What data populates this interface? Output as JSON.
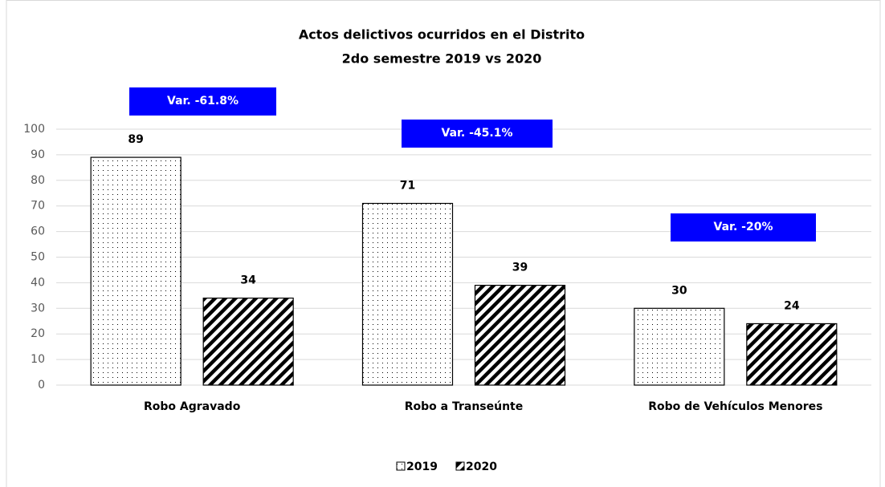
{
  "chart_data": {
    "type": "bar",
    "title": [
      "Actos delictivos ocurridos en el Distrito",
      "2do semestre 2019 vs 2020"
    ],
    "categories": [
      "Robo Agravado",
      "Robo a Transeúnte",
      "Robo de Vehículos Menores"
    ],
    "series": [
      {
        "name": "2019",
        "color": "#000000",
        "pattern": "dots",
        "values": [
          89,
          71,
          30
        ]
      },
      {
        "name": "2020",
        "color": "#000000",
        "pattern": "stripes",
        "values": [
          34,
          39,
          24
        ]
      }
    ],
    "annotations": [
      "Var. -61.8%",
      "Var. -45.1%",
      "Var. -20%"
    ],
    "annotation_color": "#0000ff",
    "ylim": [
      0,
      100
    ],
    "yticks": [
      0,
      10,
      20,
      30,
      40,
      50,
      60,
      70,
      80,
      90,
      100
    ],
    "grid": true,
    "legend": "bottom"
  }
}
